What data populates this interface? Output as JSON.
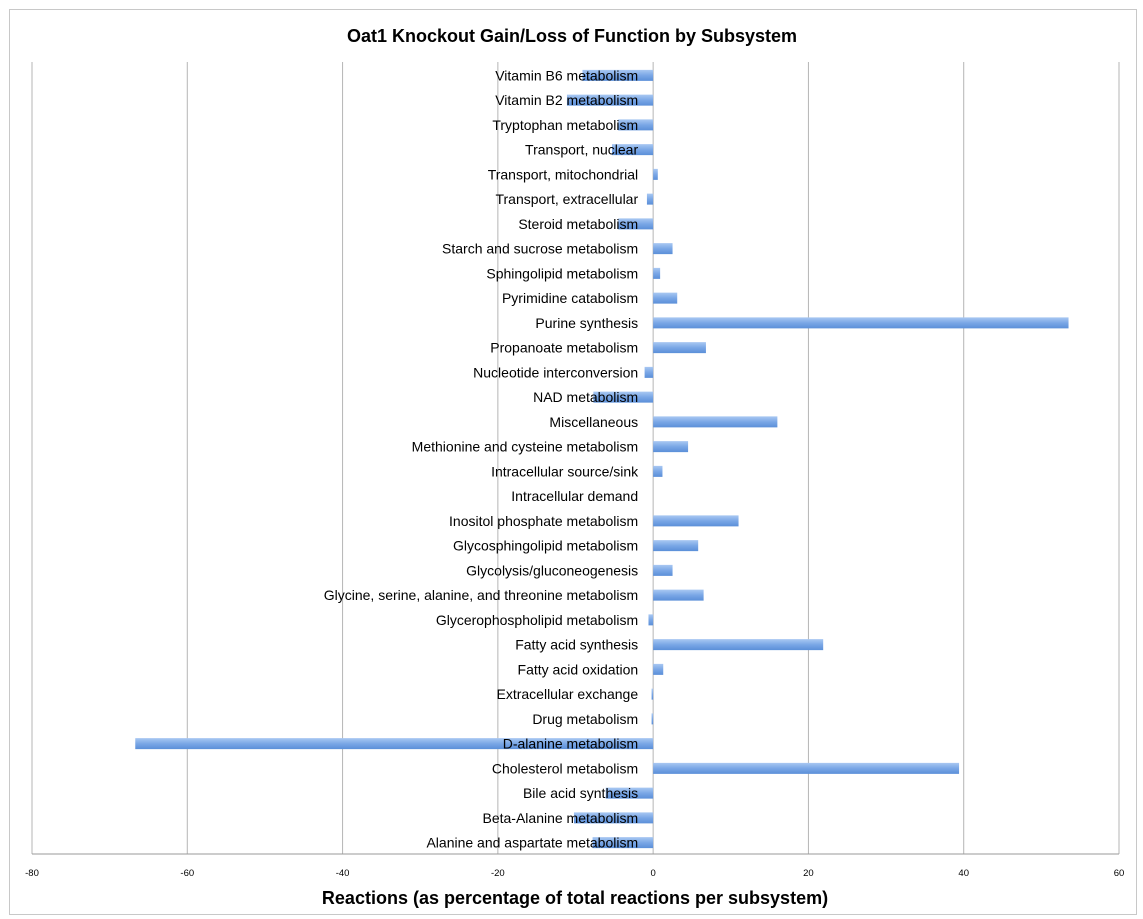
{
  "chart_data": {
    "type": "bar",
    "orientation": "horizontal",
    "title": "Oat1 Knockout Gain/Loss of Function by Subsystem",
    "xlabel": "Reactions (as percentage of total reactions per subsystem)",
    "ylabel": "",
    "xlim": [
      -80,
      60
    ],
    "xticks": [
      -80,
      -60,
      -40,
      -20,
      0,
      20,
      40,
      60
    ],
    "grid": "vertical",
    "bar_color": "#7aa7e6",
    "categories": [
      "Vitamin B6 metabolism",
      "Vitamin B2 metabolism",
      "Tryptophan metabolism",
      "Transport, nuclear",
      "Transport, mitochondrial",
      "Transport, extracellular",
      "Steroid metabolism",
      "Starch and sucrose metabolism",
      "Sphingolipid metabolism",
      "Pyrimidine catabolism",
      "Purine synthesis",
      "Propanoate metabolism",
      "Nucleotide interconversion",
      "NAD metabolism",
      "Miscellaneous",
      "Methionine and cysteine metabolism",
      "Intracellular source/sink",
      "Intracellular demand",
      "Inositol phosphate metabolism",
      "Glycosphingolipid metabolism",
      "Glycolysis/gluconeogenesis",
      "Glycine, serine, alanine, and threonine metabolism",
      "Glycerophospholipid metabolism",
      "Fatty acid synthesis",
      "Fatty acid oxidation",
      "Extracellular exchange",
      "Drug metabolism",
      "D-alanine metabolism",
      "Cholesterol metabolism",
      "Bile acid synthesis",
      "Beta-Alanine metabolism",
      "Alanine and aspartate metabolism"
    ],
    "values": [
      -9.1,
      -11.1,
      -4.5,
      -5.3,
      0.6,
      -0.8,
      -4.5,
      2.5,
      0.9,
      3.1,
      53.5,
      6.8,
      -1.1,
      -7.7,
      16.0,
      4.5,
      1.2,
      0,
      11.0,
      5.8,
      2.5,
      6.5,
      -0.6,
      21.9,
      1.3,
      -0.2,
      -0.2,
      -66.7,
      39.4,
      -6.1,
      -10.2,
      -7.8
    ]
  }
}
